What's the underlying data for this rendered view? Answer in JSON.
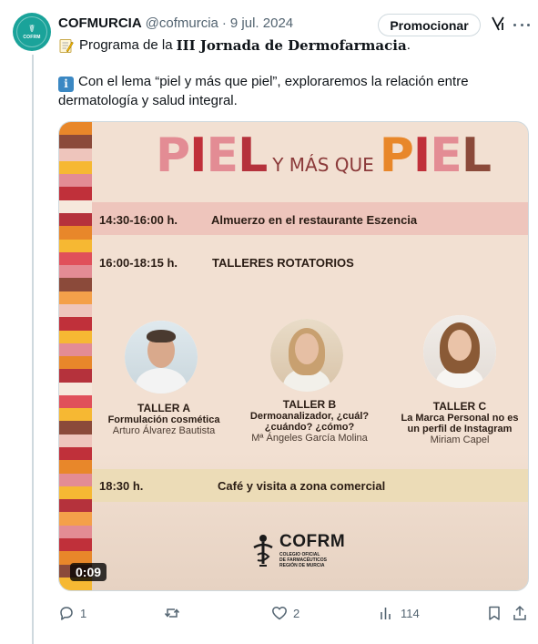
{
  "tweet": {
    "author_name": "COFMURCIA",
    "handle": "@cofmurcia",
    "separator": "·",
    "date": "9 jul. 2024",
    "promote_label": "Promocionar",
    "avatar_text": "COFRM",
    "line1_prefix": "Programa de la",
    "line1_bold": "III Jornada de Dermofarmacia",
    "line1_suffix": ".",
    "line2": "Con el lema “piel y más que piel”, exploraremos la relación entre dermatología y salud integral."
  },
  "media": {
    "title_left": "PIEL",
    "title_mid": "Y MÁS QUE",
    "title_right": "PIEL",
    "rows": [
      {
        "time": "14:30-16:00 h.",
        "label": "Almuerzo en el restaurante Eszencia"
      },
      {
        "time": "16:00-18:15 h.",
        "label": "TALLERES ROTATORIOS"
      },
      {
        "time": "18:30 h.",
        "label": "Café y visita a zona comercial"
      }
    ],
    "talleres": [
      {
        "name": "TALLER A",
        "title": "Formulación cosmética",
        "person": "Arturo Álvarez Bautista"
      },
      {
        "name": "TALLER B",
        "title": "Dermoanalizador, ¿cuál? ¿cuándo? ¿cómo?",
        "person": "Mª Ángeles García Molina"
      },
      {
        "name": "TALLER C",
        "title": "La Marca Personal no es un perfil de Instagram",
        "person": "Miriam Capel"
      }
    ],
    "logo_name": "COFRM",
    "logo_sub1": "COLEGIO OFICIAL",
    "logo_sub2": "DE FARMACÉUTICOS",
    "logo_sub3": "REGIÓN DE MURCIA",
    "duration": "0:09"
  },
  "actions": {
    "replies": "1",
    "retweets": "",
    "likes": "2",
    "views": "114"
  },
  "colors": {
    "accent": "#1d9bf0",
    "muted": "#536471",
    "brand": "#1aa39a",
    "poster_bg": "#f2e0d2",
    "title_red": "#c0303a",
    "title_orange": "#e8872a",
    "title_pink": "#e38c94",
    "title_brown": "#8b4a3a"
  },
  "icons": {
    "memo": "memo-icon",
    "info": "information-icon",
    "grok": "grok-icon",
    "more": "more-icon",
    "reply": "reply-icon",
    "retweet": "retweet-icon",
    "like": "heart-icon",
    "views": "views-icon",
    "bookmark": "bookmark-icon",
    "share": "share-icon"
  }
}
